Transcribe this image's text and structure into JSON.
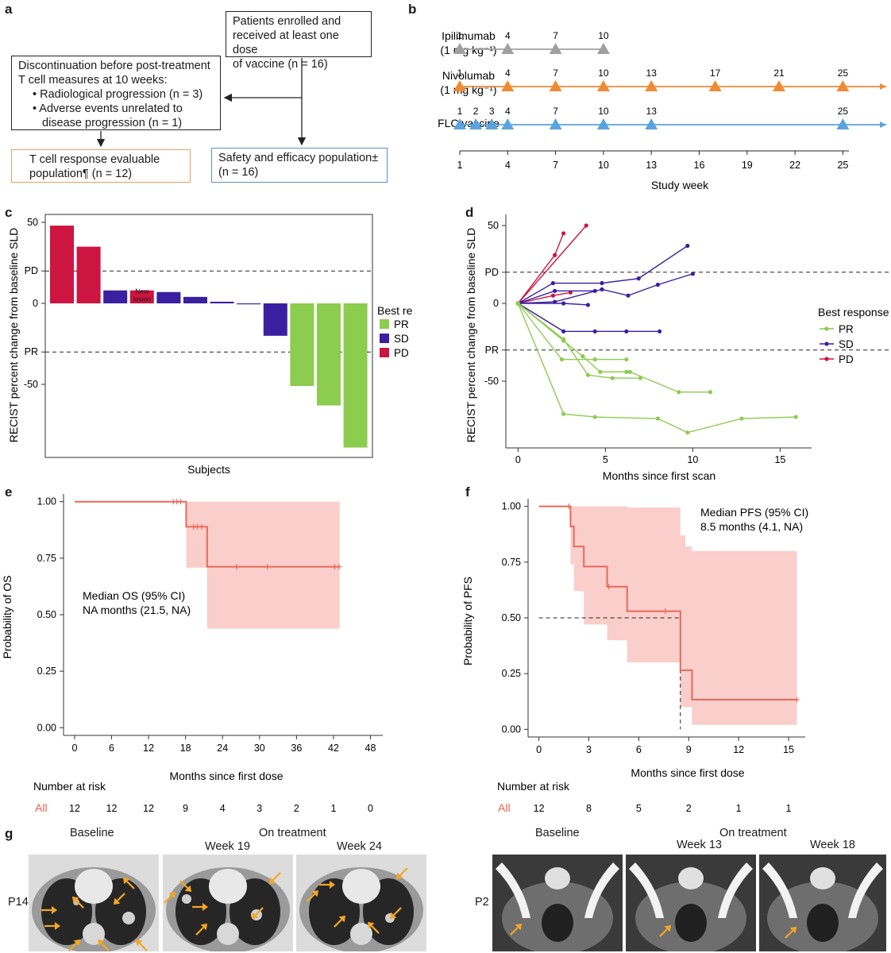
{
  "panels": {
    "a": "a",
    "b": "b",
    "c": "c",
    "d": "d",
    "e": "e",
    "f": "f",
    "g": "g"
  },
  "flow": {
    "enrolled_l1": "Patients enrolled and",
    "enrolled_l2": "received at least one dose",
    "enrolled_l3": "of vaccine (n = 16)",
    "disc_l1": "Discontinuation before post-treatment",
    "disc_l2": "T cell measures at 10 weeks:",
    "disc_l3": "• Radiological progression (n = 3)",
    "disc_l4": "• Adverse events unrelated to",
    "disc_l5": "disease progression (n = 1)",
    "tcell_l1": "T cell response evaluable",
    "tcell_l2": "population¶ (n = 12)",
    "safety_l1": "Safety and efficacy population±",
    "safety_l2": "(n = 16)",
    "colors": {
      "tcell_border": "#e8a060",
      "safety_border": "#5b8fd0"
    }
  },
  "schedule": {
    "rows": [
      {
        "label1": "Ipilimumab",
        "label2": "(1 mg kg⁻¹)",
        "color": "#a0a0a0",
        "weeks": [
          1,
          4,
          7,
          10
        ],
        "arrow": false
      },
      {
        "label1": "Nivolumab",
        "label2": "(1 mg kg⁻¹)",
        "color": "#f08a35",
        "weeks": [
          1,
          4,
          7,
          10,
          13,
          17,
          21,
          25
        ],
        "arrow": true
      },
      {
        "label1": "FLC vaccine",
        "label2": "",
        "color": "#5ba3dd",
        "weeks": [
          1,
          2,
          3,
          4,
          7,
          10,
          13,
          25
        ],
        "arrow": true
      }
    ],
    "axis_ticks": [
      1,
      4,
      7,
      10,
      13,
      16,
      19,
      22,
      25
    ],
    "xlabel": "Study week"
  },
  "chart_data": [
    {
      "id": "c",
      "type": "bar",
      "ylabel": "RECIST percent change from baseline SLD",
      "xlabel": "Subjects",
      "values": [
        48,
        35,
        8,
        8,
        7,
        4,
        1,
        0,
        -20,
        -51,
        -63,
        -89
      ],
      "response": [
        "PD",
        "PD",
        "SD",
        "PD",
        "SD",
        "SD",
        "SD",
        "SD",
        "SD",
        "PR",
        "PR",
        "PR"
      ],
      "bar_annotation": "New\nlesion",
      "yticks": [
        {
          "v": 50,
          "t": "50"
        },
        {
          "v": 20,
          "t": "PD"
        },
        {
          "v": 0,
          "t": "0"
        },
        {
          "v": -30,
          "t": "PR"
        },
        {
          "v": -50,
          "t": "-50"
        }
      ],
      "dashed": [
        20,
        -30
      ],
      "ylim": [
        -90,
        50
      ],
      "legend_title": "Best response",
      "legend": [
        {
          "name": "PR",
          "color": "#8ccc4f"
        },
        {
          "name": "SD",
          "color": "#3a1fa0"
        },
        {
          "name": "PD",
          "color": "#cc1540"
        }
      ]
    },
    {
      "id": "d",
      "type": "line",
      "ylabel": "RECIST percent change from baseline SLD",
      "xlabel": "Months since first scan",
      "xticks": [
        0,
        5,
        10,
        15
      ],
      "xlim": [
        -0.7,
        16.8
      ],
      "yticks": [
        {
          "v": 50,
          "t": "50"
        },
        {
          "v": 20,
          "t": "PD"
        },
        {
          "v": 0,
          "t": "0"
        },
        {
          "v": -30,
          "t": "PR"
        },
        {
          "v": -50,
          "t": "-50"
        }
      ],
      "dashed": [
        20,
        -30
      ],
      "ylim": [
        -88,
        62
      ],
      "legend_title": "Best response",
      "legend": [
        {
          "name": "PR",
          "color": "#8ccc4f"
        },
        {
          "name": "SD",
          "color": "#3a1fa0"
        },
        {
          "name": "PD",
          "color": "#cc1540"
        }
      ],
      "series": [
        {
          "group": "PD",
          "x": [
            0,
            2.1,
            2.6
          ],
          "y": [
            0,
            31,
            45
          ]
        },
        {
          "group": "PD",
          "x": [
            0,
            3.9
          ],
          "y": [
            0,
            50
          ]
        },
        {
          "group": "PD",
          "x": [
            0,
            2.0,
            3.0
          ],
          "y": [
            0,
            5,
            7
          ]
        },
        {
          "group": "SD",
          "x": [
            0,
            2.0,
            4.8,
            6.9,
            9.7
          ],
          "y": [
            0,
            13,
            13,
            16,
            37
          ]
        },
        {
          "group": "SD",
          "x": [
            0,
            2.1,
            4.8,
            6.3,
            8.0,
            10.0
          ],
          "y": [
            0,
            1,
            9,
            5,
            12,
            19
          ]
        },
        {
          "group": "SD",
          "x": [
            0,
            2.6,
            4.0
          ],
          "y": [
            0,
            0,
            -1
          ]
        },
        {
          "group": "SD",
          "x": [
            0,
            2.1,
            4.4
          ],
          "y": [
            0,
            8,
            8
          ]
        },
        {
          "group": "SD",
          "x": [
            0,
            2.6,
            4.4,
            6.2,
            8.1
          ],
          "y": [
            0,
            -18,
            -18,
            -18,
            -18
          ]
        },
        {
          "group": "PR",
          "x": [
            0,
            2.5,
            4.4,
            6.2
          ],
          "y": [
            0,
            -36,
            -36,
            -36
          ]
        },
        {
          "group": "PR",
          "x": [
            0,
            2.6,
            4.0,
            5.4,
            7.0
          ],
          "y": [
            0,
            -23,
            -46,
            -48,
            -48
          ]
        },
        {
          "group": "PR",
          "x": [
            0,
            2.6,
            3.7,
            4.7,
            6.2,
            6.4,
            9.2,
            11.0
          ],
          "y": [
            0,
            -24,
            -34,
            -44,
            -44,
            -44,
            -57,
            -57
          ]
        },
        {
          "group": "PR",
          "x": [
            0,
            2.6,
            4.4,
            8.0,
            9.7,
            12.8,
            15.9
          ],
          "y": [
            0,
            -71,
            -73,
            -74,
            -83,
            -74,
            -73
          ]
        }
      ]
    },
    {
      "id": "e",
      "type": "line",
      "ylabel": "Probability of OS",
      "xlabel": "Months since first dose",
      "xticks": [
        0,
        6,
        12,
        18,
        24,
        30,
        36,
        42,
        48
      ],
      "xlim": [
        -1.8,
        50
      ],
      "yticks": [
        0,
        0.25,
        0.5,
        0.75,
        1.0
      ],
      "ylim": [
        -0.02,
        1.02
      ],
      "median_text_1": "Median OS (95% CI)",
      "median_text_2": "NA months (21.5, NA)",
      "km": [
        [
          0,
          1.0
        ],
        [
          18.1,
          1.0
        ],
        [
          18.1,
          0.889
        ],
        [
          21.5,
          0.889
        ],
        [
          21.5,
          0.712
        ],
        [
          43,
          0.712
        ]
      ],
      "ci": [
        [
          0,
          1.0,
          1.0
        ],
        [
          18.1,
          0.708,
          1.0
        ],
        [
          21.5,
          0.438,
          1.0
        ],
        [
          43,
          0.438,
          1.0
        ]
      ],
      "censor": [
        [
          16,
          1.0
        ],
        [
          16.6,
          1.0
        ],
        [
          17.2,
          1.0
        ],
        [
          19.3,
          0.889
        ],
        [
          19.9,
          0.889
        ],
        [
          20.6,
          0.889
        ],
        [
          26.3,
          0.712
        ],
        [
          31.3,
          0.712
        ],
        [
          42.2,
          0.712
        ],
        [
          42.9,
          0.712
        ]
      ],
      "risk_label": "Number at risk",
      "risk_group": "All",
      "risk": [
        12,
        12,
        12,
        9,
        4,
        3,
        2,
        1,
        0
      ]
    },
    {
      "id": "f",
      "type": "line",
      "ylabel": "Probability of PFS",
      "xlabel": "Months since first dose",
      "xticks": [
        0,
        3,
        6,
        9,
        12,
        15
      ],
      "xlim": [
        -0.65,
        16
      ],
      "yticks": [
        0,
        0.25,
        0.5,
        0.75,
        1.0
      ],
      "ylim": [
        -0.02,
        1.02
      ],
      "median_text_1": "Median PFS (95% CI)",
      "median_text_2": "8.5 months (4.1, NA)",
      "median_x": 8.5,
      "km": [
        [
          0,
          1.0
        ],
        [
          1.9,
          1.0
        ],
        [
          1.9,
          0.91
        ],
        [
          2.1,
          0.91
        ],
        [
          2.1,
          0.82
        ],
        [
          2.7,
          0.82
        ],
        [
          2.7,
          0.73
        ],
        [
          4.1,
          0.73
        ],
        [
          4.1,
          0.64
        ],
        [
          5.3,
          0.64
        ],
        [
          5.3,
          0.53
        ],
        [
          8.5,
          0.53
        ],
        [
          8.5,
          0.265
        ],
        [
          9.2,
          0.265
        ],
        [
          9.2,
          0.133
        ],
        [
          15.5,
          0.133
        ]
      ],
      "ci": [
        [
          0,
          1.0,
          1.0
        ],
        [
          1.9,
          0.74,
          1.0
        ],
        [
          2.1,
          0.62,
          1.0
        ],
        [
          2.7,
          0.47,
          1.0
        ],
        [
          4.1,
          0.4,
          1.0
        ],
        [
          5.3,
          0.3,
          0.995
        ],
        [
          8.5,
          0.1,
          0.87
        ],
        [
          8.8,
          0.1,
          0.82
        ],
        [
          9.2,
          0.02,
          0.8
        ],
        [
          15.5,
          0.02,
          0.8
        ]
      ],
      "censor": [
        [
          1.8,
          1.0
        ],
        [
          4.2,
          0.64
        ],
        [
          7.6,
          0.53
        ],
        [
          15.5,
          0.133
        ]
      ],
      "risk_label": "Number at risk",
      "risk_group": "All",
      "risk": [
        12,
        8,
        5,
        2,
        1,
        1
      ]
    }
  ],
  "ct": {
    "left_baseline": "Baseline",
    "left_ontreatment": "On treatment",
    "left_week1": "Week 19",
    "left_week2": "Week 24",
    "left_patient": "P14",
    "right_baseline": "Baseline",
    "right_ontreatment": "On treatment",
    "right_week1": "Week 13",
    "right_week2": "Week 18",
    "right_patient": "P2",
    "arrow_color": "#f5a623"
  }
}
